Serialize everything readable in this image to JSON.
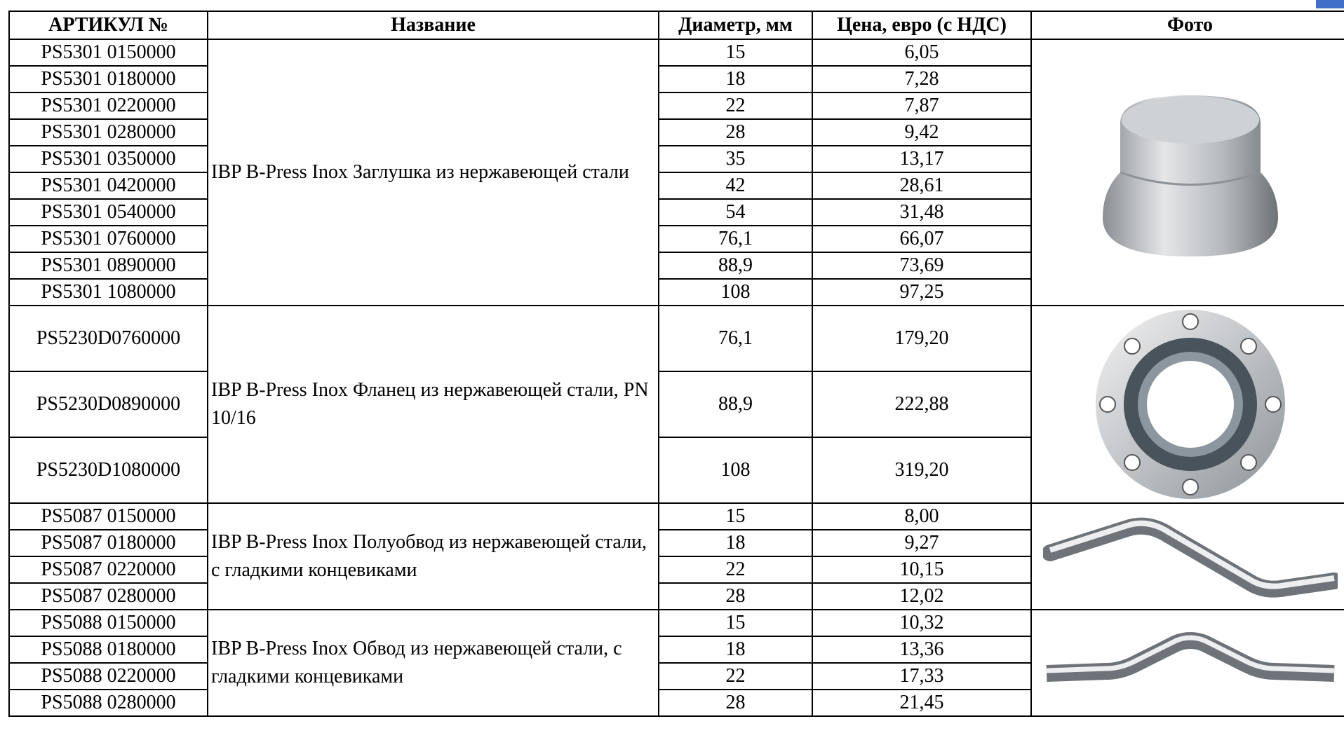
{
  "table": {
    "header": [
      "АРТИКУЛ №",
      "Название",
      "Диаметр, мм",
      "Цена, евро (с НДС)",
      "Фото"
    ],
    "groups": [
      {
        "name": "IBP B-Press Inox Заглушка из нержавеющей стали",
        "rows": [
          [
            "PS5301 0150000",
            "15",
            "6,05"
          ],
          [
            "PS5301 0180000",
            "18",
            "7,28"
          ],
          [
            "PS5301 0220000",
            "22",
            "7,87"
          ],
          [
            "PS5301 0280000",
            "28",
            "9,42"
          ],
          [
            "PS5301 0350000",
            "35",
            "13,17"
          ],
          [
            "PS5301 0420000",
            "42",
            "28,61"
          ],
          [
            "PS5301 0540000",
            "54",
            "31,48"
          ],
          [
            "PS5301 0760000",
            "76,1",
            "66,07"
          ],
          [
            "PS5301 0890000",
            "88,9",
            "73,69"
          ],
          [
            "PS5301 1080000",
            "108",
            "97,25"
          ]
        ]
      },
      {
        "name": "IBP B-Press Inox Фланец из нержавеющей стали, PN 10/16",
        "rows": [
          [
            "PS5230D0760000",
            "76,1",
            "179,20"
          ],
          [
            "PS5230D0890000",
            "88,9",
            "222,88"
          ],
          [
            "PS5230D1080000",
            "108",
            "319,20"
          ]
        ]
      },
      {
        "name": "IBP B-Press Inox Полуобвод из нержавеющей стали, с гладкими концевиками",
        "rows": [
          [
            "PS5087 0150000",
            "15",
            "8,00"
          ],
          [
            "PS5087 0180000",
            "18",
            "9,27"
          ],
          [
            "PS5087 0220000",
            "22",
            "10,15"
          ],
          [
            "PS5087 0280000",
            "28",
            "12,02"
          ]
        ]
      },
      {
        "name": "IBP B-Press Inox Обвод из нержавеющей стали, с гладкими концевиками",
        "rows": [
          [
            "PS5088 0150000",
            "15",
            "10,32"
          ],
          [
            "PS5088 0180000",
            "18",
            "13,36"
          ],
          [
            "PS5088 0220000",
            "22",
            "17,33"
          ],
          [
            "PS5088 0280000",
            "28",
            "21,45"
          ]
        ]
      }
    ]
  }
}
